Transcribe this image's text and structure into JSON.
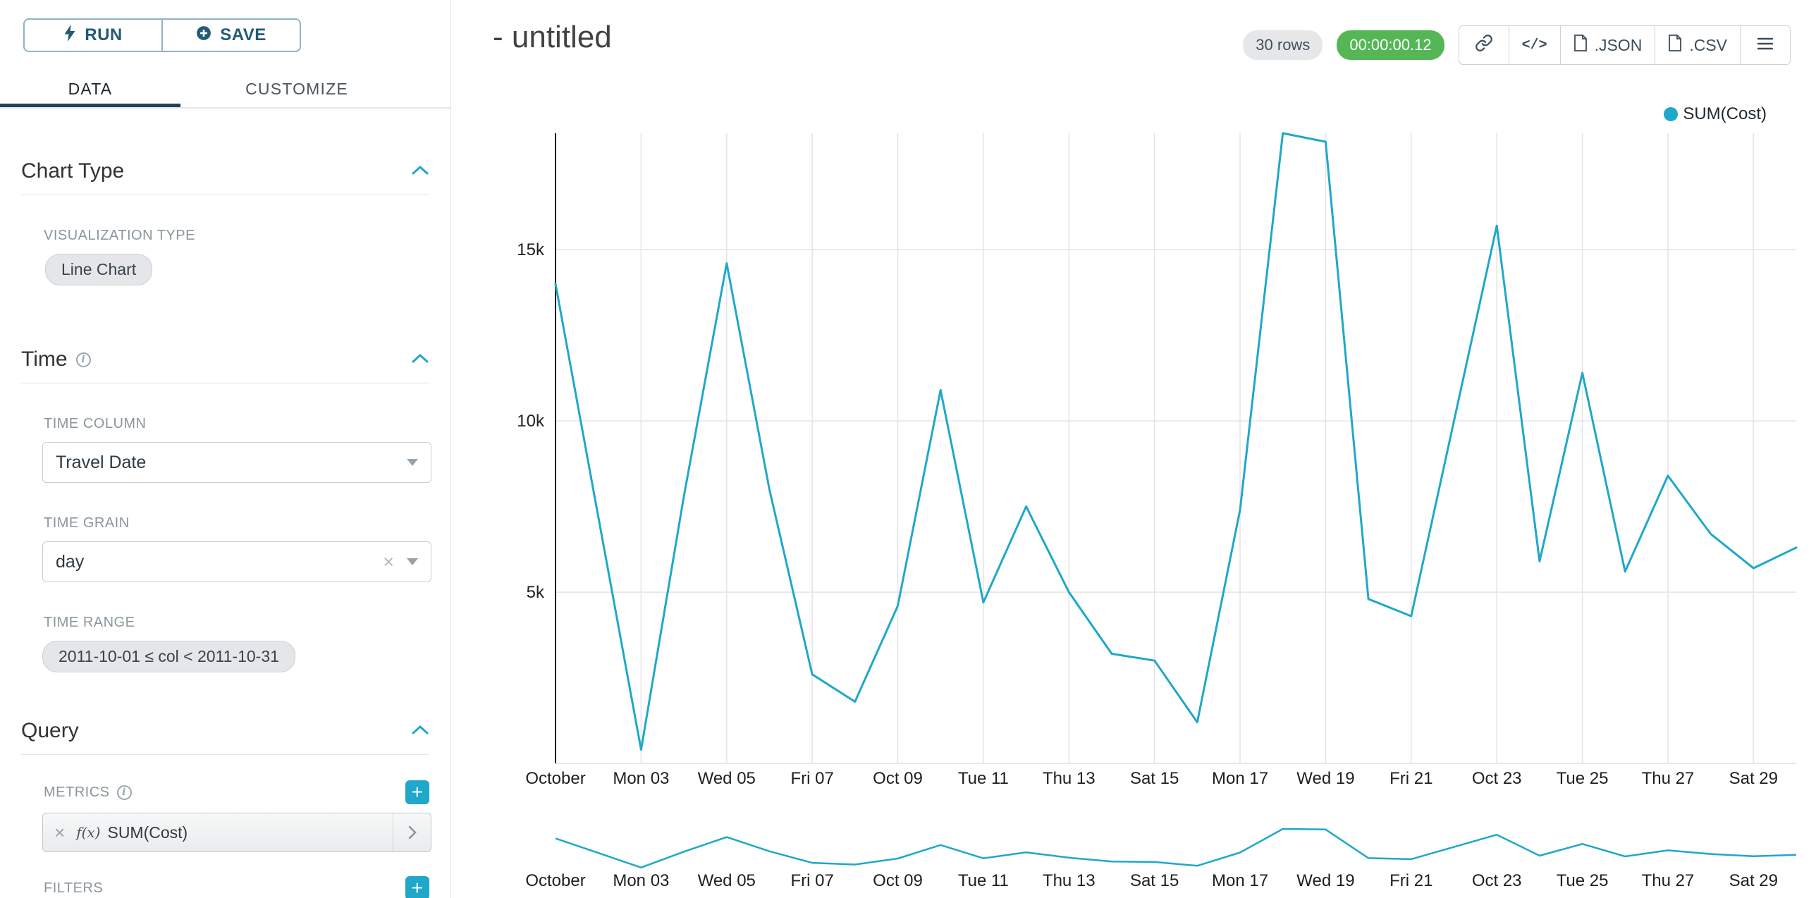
{
  "icons": {
    "plus": "+",
    "clear": "×",
    "info": "i",
    "code": "</>"
  },
  "query_panel": {
    "run_label": "RUN",
    "save_label": "SAVE",
    "tabs": [
      {
        "label": "DATA"
      },
      {
        "label": "CUSTOMIZE"
      }
    ],
    "chart_type_section": {
      "title": "Chart Type",
      "viz_label": "VISUALIZATION TYPE",
      "viz_value": "Line Chart"
    },
    "time_section": {
      "title": "Time",
      "column_label": "TIME COLUMN",
      "column_value": "Travel Date",
      "grain_label": "TIME GRAIN",
      "grain_value": "day",
      "range_label": "TIME RANGE",
      "range_value": "2011-10-01 ≤ col < 2011-10-31"
    },
    "query_section": {
      "title": "Query",
      "metrics_label": "METRICS",
      "metric_fx": "f(x)",
      "metric_value": "SUM(Cost)",
      "filters_label": "FILTERS"
    }
  },
  "header": {
    "title": "- untitled",
    "rows_badge": "30 rows",
    "timer": "00:00:00.12",
    "export_json": ".JSON",
    "export_csv": ".CSV"
  },
  "legend": {
    "label": "SUM(Cost)"
  },
  "chart_data": {
    "type": "line",
    "title": "",
    "xlabel": "",
    "ylabel": "",
    "grid": true,
    "legend_position": "top-right",
    "has_brush_minichart": true,
    "ylim": [
      0,
      18400
    ],
    "x": [
      "2011-10-01",
      "2011-10-02",
      "2011-10-03",
      "2011-10-04",
      "2011-10-05",
      "2011-10-06",
      "2011-10-07",
      "2011-10-08",
      "2011-10-09",
      "2011-10-10",
      "2011-10-11",
      "2011-10-12",
      "2011-10-13",
      "2011-10-14",
      "2011-10-15",
      "2011-10-16",
      "2011-10-17",
      "2011-10-18",
      "2011-10-19",
      "2011-10-20",
      "2011-10-21",
      "2011-10-22",
      "2011-10-23",
      "2011-10-24",
      "2011-10-25",
      "2011-10-26",
      "2011-10-27",
      "2011-10-28",
      "2011-10-29",
      "2011-10-30"
    ],
    "x_tick_labels": [
      "October",
      "Mon 03",
      "Wed 05",
      "Fri 07",
      "Oct 09",
      "Tue 11",
      "Thu 13",
      "Sat 15",
      "Mon 17",
      "Wed 19",
      "Fri 21",
      "Oct 23",
      "Tue 25",
      "Thu 27",
      "Sat 29"
    ],
    "y_ticks": [
      {
        "value": 5000,
        "label": "5k"
      },
      {
        "value": 10000,
        "label": "10k"
      },
      {
        "value": 15000,
        "label": "15k"
      }
    ],
    "series": [
      {
        "name": "SUM(Cost)",
        "color": "#1fa8c9",
        "values": [
          14000,
          7200,
          400,
          7800,
          14600,
          8000,
          2600,
          1800,
          4600,
          10900,
          4700,
          7500,
          5000,
          3200,
          3000,
          1200,
          7400,
          18400,
          18150,
          4800,
          4300,
          10000,
          15700,
          5900,
          11400,
          5600,
          8400,
          6700,
          5700,
          6300
        ]
      }
    ]
  }
}
